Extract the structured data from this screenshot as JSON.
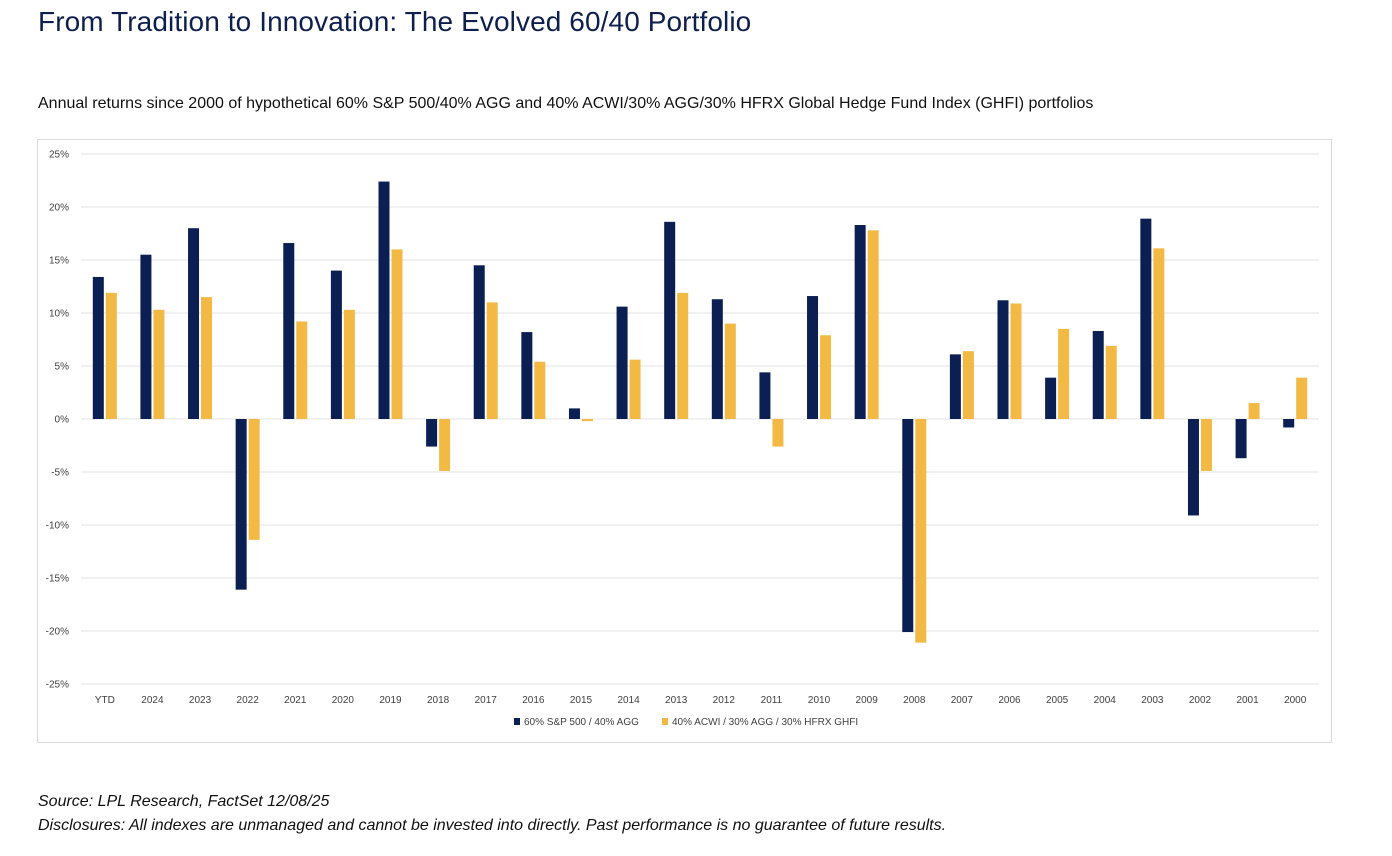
{
  "title": "From Tradition to Innovation: The Evolved 60/40 Portfolio",
  "subtitle": "Annual returns since 2000 of hypothetical 60% S&P 500/40% AGG and 40% ACWI/30% AGG/30% HFRX Global Hedge Fund Index (GHFI) portfolios",
  "footer": {
    "source": "Source: LPL Research, FactSet 12/08/25",
    "disclosures": "Disclosures: All indexes are unmanaged and cannot be invested into directly. Past performance is no guarantee of future results."
  },
  "colors": {
    "series1": "#0b1f52",
    "series2": "#f2b944",
    "grid": "#e3e3e3",
    "axis_text": "#404040"
  },
  "chart_data": {
    "type": "bar",
    "categories": [
      "YTD",
      "2024",
      "2023",
      "2022",
      "2021",
      "2020",
      "2019",
      "2018",
      "2017",
      "2016",
      "2015",
      "2014",
      "2013",
      "2012",
      "2011",
      "2010",
      "2009",
      "2008",
      "2007",
      "2006",
      "2005",
      "2004",
      "2003",
      "2002",
      "2001",
      "2000"
    ],
    "series": [
      {
        "name": "60% S&P 500 / 40% AGG",
        "values": [
          13.4,
          15.5,
          18.0,
          -16.1,
          16.6,
          14.0,
          22.4,
          -2.6,
          14.5,
          8.2,
          1.0,
          10.6,
          18.6,
          11.3,
          4.4,
          11.6,
          18.3,
          -20.1,
          6.1,
          11.2,
          3.9,
          8.3,
          18.9,
          -9.1,
          -3.7,
          -0.8
        ]
      },
      {
        "name": "40% ACWI / 30% AGG / 30% HFRX GHFI",
        "values": [
          11.9,
          10.3,
          11.5,
          -11.4,
          9.2,
          10.3,
          16.0,
          -4.9,
          11.0,
          5.4,
          -0.2,
          5.6,
          11.9,
          9.0,
          -2.6,
          7.9,
          17.8,
          -21.1,
          6.4,
          10.9,
          8.5,
          6.9,
          16.1,
          -4.9,
          1.5,
          3.9
        ]
      }
    ],
    "yticks": [
      "25%",
      "20%",
      "15%",
      "10%",
      "5%",
      "0%",
      "-5%",
      "-10%",
      "-15%",
      "-20%",
      "-25%"
    ],
    "ylim": [
      -25,
      25
    ],
    "ystep": 5,
    "grid": true,
    "legend_position": "bottom-center",
    "xlabel": "",
    "ylabel": ""
  }
}
